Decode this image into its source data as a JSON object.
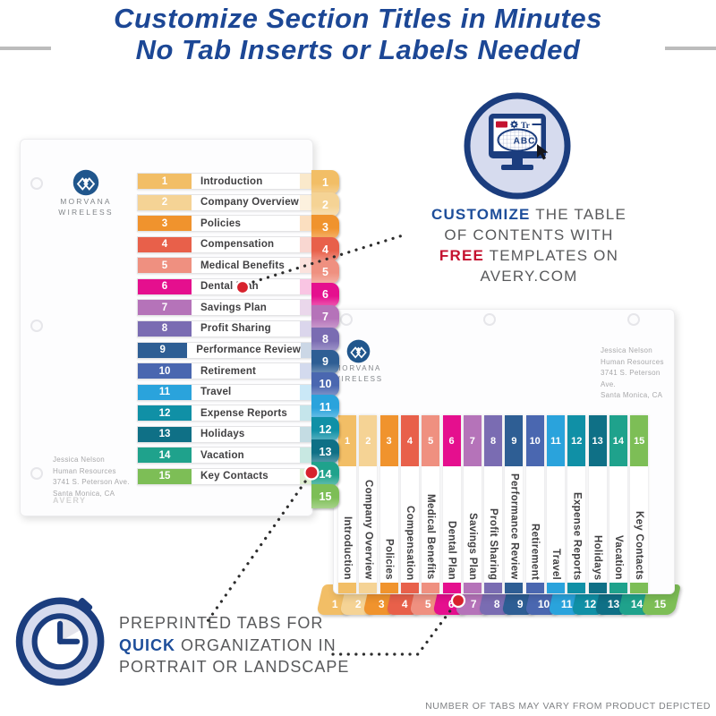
{
  "headline": {
    "line1": "Customize Section Titles in Minutes",
    "line2": "No Tab Inserts or Labels Needed"
  },
  "brand": {
    "line1": "MORVANA",
    "line2": "WIRELESS"
  },
  "address_lines": [
    "Jessica Nelson",
    "Human Resources",
    "3741 S. Peterson Ave.",
    "Santa Monica, CA"
  ],
  "watermark": "AVERY",
  "sections": [
    {
      "num": "1",
      "title": "Introduction",
      "color": "#F2BE66",
      "tint": "#FAE9CB"
    },
    {
      "num": "2",
      "title": "Company Overview",
      "color": "#F5D395",
      "tint": "#FCF1DE"
    },
    {
      "num": "3",
      "title": "Policies",
      "color": "#F0932D",
      "tint": "#FBDFC0"
    },
    {
      "num": "4",
      "title": "Compensation",
      "color": "#E8604A",
      "tint": "#F9D7D1"
    },
    {
      "num": "5",
      "title": "Medical Benefits",
      "color": "#EF9080",
      "tint": "#FBE2DD"
    },
    {
      "num": "6",
      "title": "Dental Plan",
      "color": "#E50F8E",
      "tint": "#F9C5E3"
    },
    {
      "num": "7",
      "title": "Savings Plan",
      "color": "#B573B9",
      "tint": "#EAD7EB"
    },
    {
      "num": "8",
      "title": "Profit Sharing",
      "color": "#7A6CB2",
      "tint": "#DBD6EC"
    },
    {
      "num": "9",
      "title": "Performance Review",
      "color": "#2E5E94",
      "tint": "#CBD7E6"
    },
    {
      "num": "10",
      "title": "Retirement",
      "color": "#4A67B0",
      "tint": "#D3DAEE"
    },
    {
      "num": "11",
      "title": "Travel",
      "color": "#2AA3DC",
      "tint": "#CAE8F7"
    },
    {
      "num": "12",
      "title": "Expense Reports",
      "color": "#1090A6",
      "tint": "#C5E5EB"
    },
    {
      "num": "13",
      "title": "Holidays",
      "color": "#0F7086",
      "tint": "#C4DCE3"
    },
    {
      "num": "14",
      "title": "Vacation",
      "color": "#1FA28C",
      "tint": "#C8E8E2"
    },
    {
      "num": "15",
      "title": "Key Contacts",
      "color": "#7DBE56",
      "tint": "#DFEED2"
    }
  ],
  "customize_callout": {
    "em1": "CUSTOMIZE",
    "rest1": " THE TABLE",
    "line2": "OF CONTENTS WITH",
    "em3": "FREE",
    "rest3": " TEMPLATES ON",
    "line4": "AVERY.COM"
  },
  "preprinted_callout": {
    "line1": "PREPRINTED TABS FOR",
    "em2": "QUICK",
    "rest2": " ORGANIZATION IN",
    "line3": "PORTRAIT OR LANDSCAPE"
  },
  "footnote": "NUMBER OF TABS MAY VARY FROM PRODUCT DEPICTED",
  "icons": {
    "monitor": {
      "abc_label": "ABC",
      "text_tool": "Tr",
      "chip": "Avery"
    }
  },
  "colors": {
    "headline_navy": "#1c4795",
    "callout_navy": "#1e4e9a",
    "callout_red": "#c4122f",
    "dot_red": "#d7222d",
    "icon_navy": "#1b3d7e",
    "icon_lavender": "#d6dbee"
  }
}
